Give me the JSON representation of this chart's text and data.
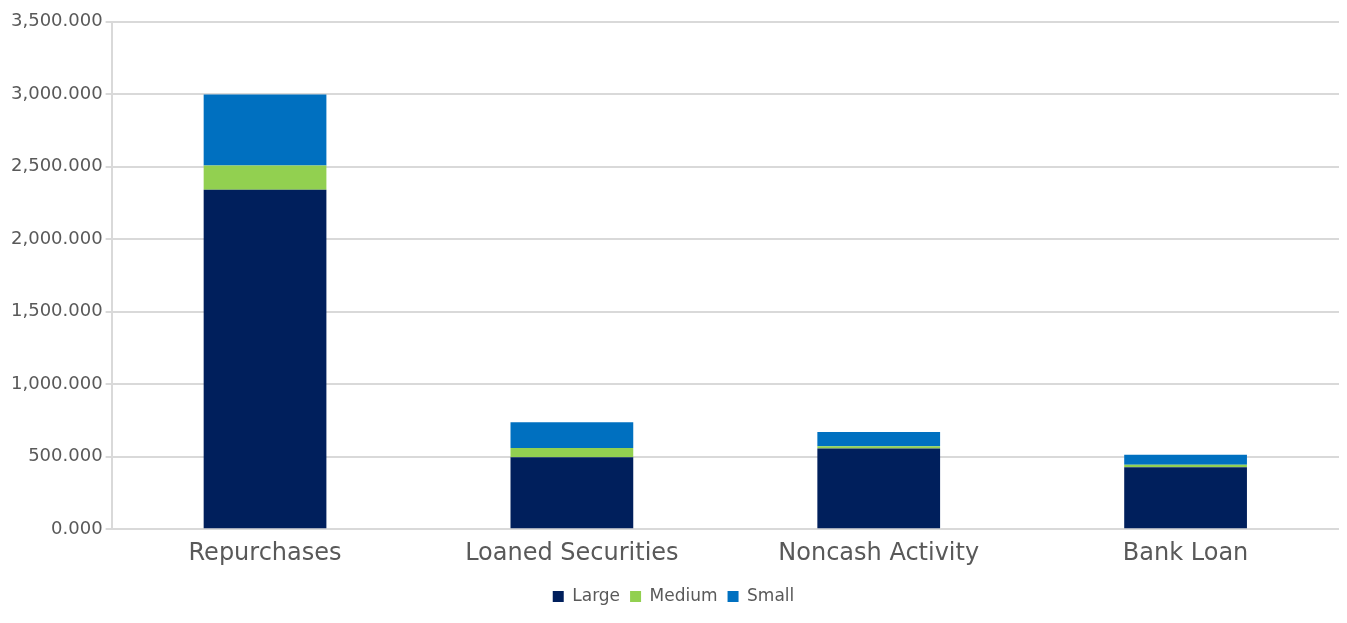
{
  "chart_data": {
    "type": "bar",
    "stacked": true,
    "categories": [
      "Repurchases",
      "Loaned Securities",
      "Noncash Activity",
      "Bank Loan"
    ],
    "series": [
      {
        "name": "Large",
        "color": "#001f5c",
        "values": [
          2342,
          497,
          556,
          427
        ]
      },
      {
        "name": "Medium",
        "color": "#92d050",
        "values": [
          166,
          63,
          17,
          17
        ]
      },
      {
        "name": "Small",
        "color": "#0070c0",
        "values": [
          490,
          177,
          97,
          70
        ]
      }
    ],
    "ylim": [
      0,
      3500
    ],
    "yticks": [
      {
        "value": 0,
        "label": "0.000"
      },
      {
        "value": 500,
        "label": "500.000"
      },
      {
        "value": 1000,
        "label": "1,000.000"
      },
      {
        "value": 1500,
        "label": "1,500.000"
      },
      {
        "value": 2000,
        "label": "2,000.000"
      },
      {
        "value": 2500,
        "label": "2,500.000"
      },
      {
        "value": 3000,
        "label": "3,000.000"
      },
      {
        "value": 3500,
        "label": "3,500.000"
      }
    ],
    "grid": "y",
    "legend": "bottom"
  }
}
